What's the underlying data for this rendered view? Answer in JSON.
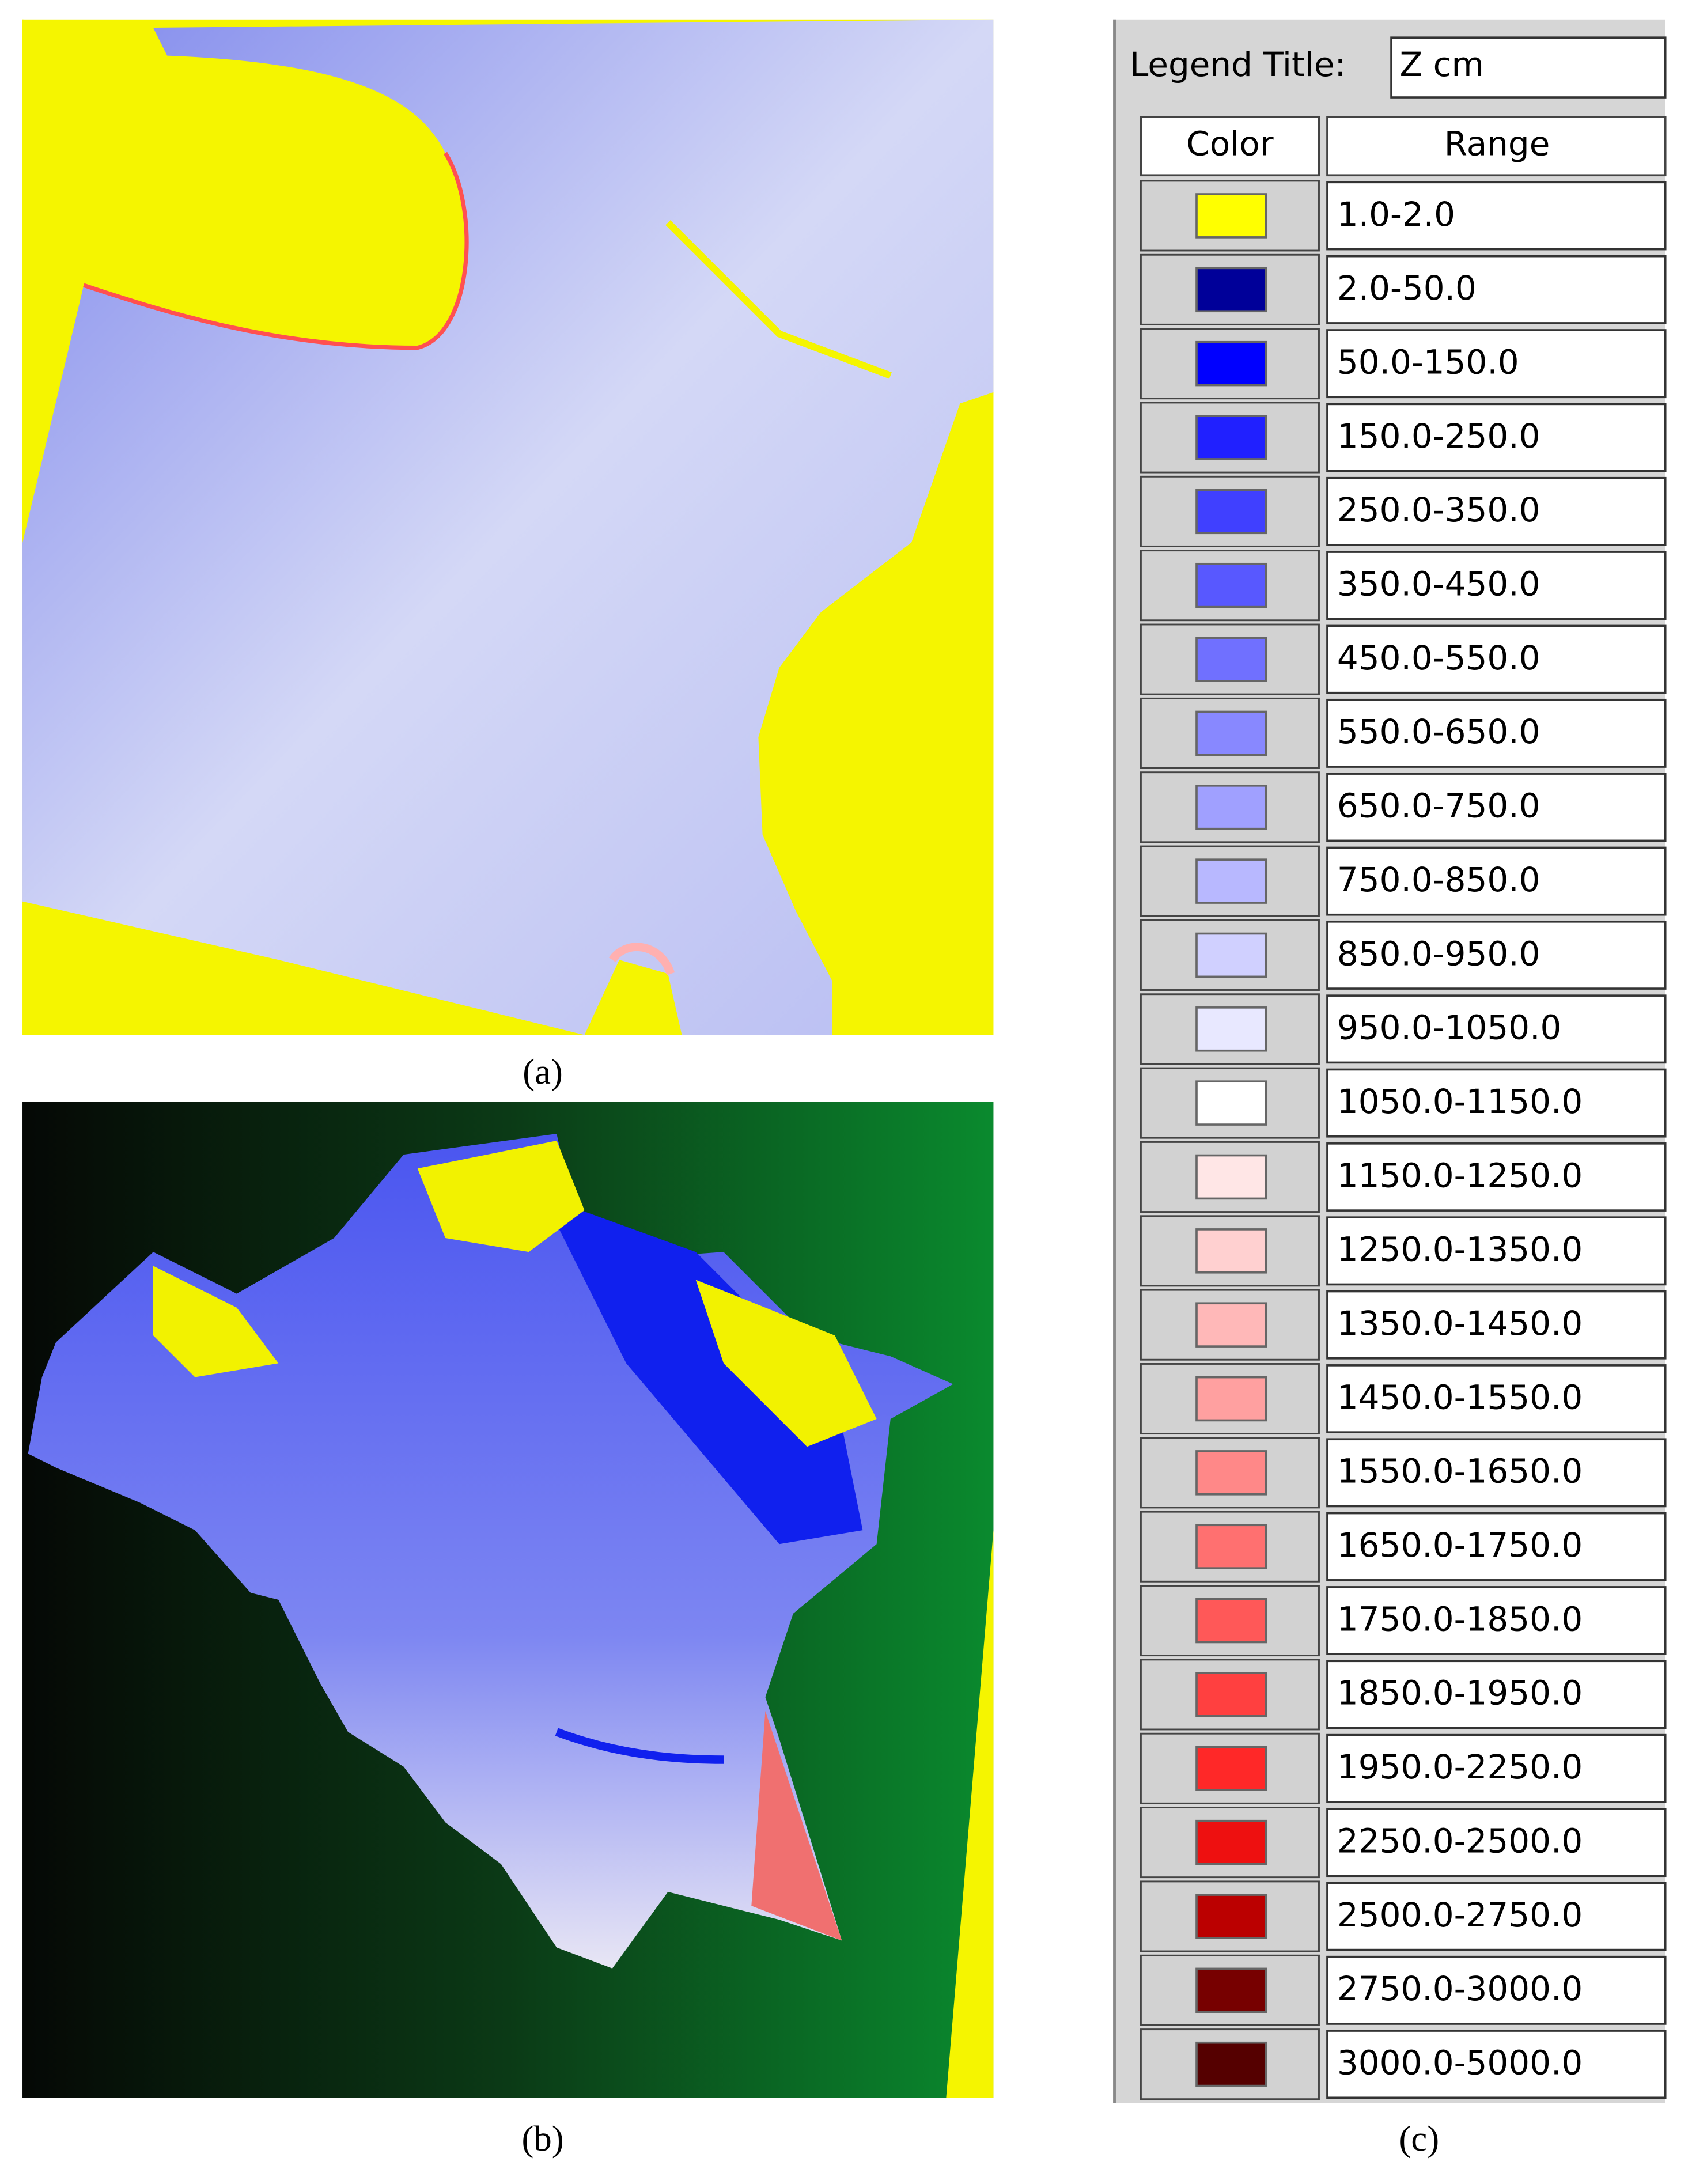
{
  "captions": [
    "(a)",
    "(b)",
    "(c)"
  ],
  "legend": {
    "title_label": "Legend Title:",
    "title_value": "Z cm",
    "columns": [
      "Color",
      "Range"
    ],
    "rows": [
      {
        "color": "#ffff00",
        "range": "1.0-2.0"
      },
      {
        "color": "#000099",
        "range": "2.0-50.0"
      },
      {
        "color": "#0000ff",
        "range": "50.0-150.0"
      },
      {
        "color": "#2020ff",
        "range": "150.0-250.0"
      },
      {
        "color": "#4040ff",
        "range": "250.0-350.0"
      },
      {
        "color": "#5858ff",
        "range": "350.0-450.0"
      },
      {
        "color": "#7070ff",
        "range": "450.0-550.0"
      },
      {
        "color": "#8888ff",
        "range": "550.0-650.0"
      },
      {
        "color": "#a0a0ff",
        "range": "650.0-750.0"
      },
      {
        "color": "#b8b8ff",
        "range": "750.0-850.0"
      },
      {
        "color": "#d0d0ff",
        "range": "850.0-950.0"
      },
      {
        "color": "#e8e8ff",
        "range": "950.0-1050.0"
      },
      {
        "color": "#ffffff",
        "range": "1050.0-1150.0"
      },
      {
        "color": "#ffe6e6",
        "range": "1150.0-1250.0"
      },
      {
        "color": "#ffd0d0",
        "range": "1250.0-1350.0"
      },
      {
        "color": "#ffb8b8",
        "range": "1350.0-1450.0"
      },
      {
        "color": "#ffa0a0",
        "range": "1450.0-1550.0"
      },
      {
        "color": "#ff8888",
        "range": "1550.0-1650.0"
      },
      {
        "color": "#ff7070",
        "range": "1650.0-1750.0"
      },
      {
        "color": "#ff5858",
        "range": "1750.0-1850.0"
      },
      {
        "color": "#ff4040",
        "range": "1850.0-1950.0"
      },
      {
        "color": "#ff2828",
        "range": "1950.0-2250.0"
      },
      {
        "color": "#ee1010",
        "range": "2250.0-2500.0"
      },
      {
        "color": "#bb0000",
        "range": "2500.0-2750.0"
      },
      {
        "color": "#770000",
        "range": "2750.0-3000.0"
      },
      {
        "color": "#550000",
        "range": "3000.0-5000.0"
      }
    ]
  }
}
